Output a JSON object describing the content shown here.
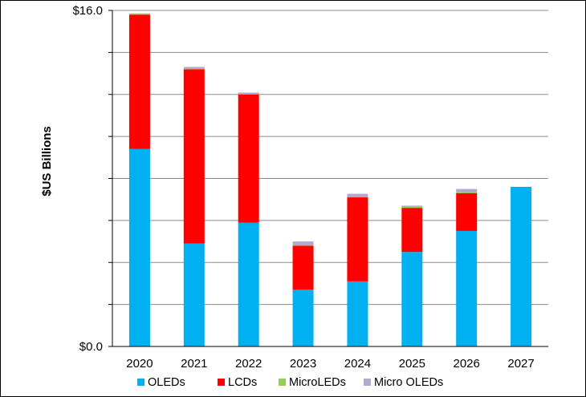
{
  "chart_data": {
    "type": "bar",
    "stacked": true,
    "title": "",
    "xlabel": "",
    "ylabel": "$US Billions",
    "ylim": [
      0,
      16
    ],
    "y_tick_labels": [
      "$0.0",
      "$16.0"
    ],
    "grid": true,
    "legend_position": "bottom",
    "categories": [
      "2020",
      "2021",
      "2022",
      "2023",
      "2024",
      "2025",
      "2026",
      "2027"
    ],
    "series": [
      {
        "name": "OLEDs",
        "color": "#00b0f0",
        "values": [
          9.4,
          4.9,
          5.9,
          2.7,
          3.1,
          4.5,
          5.5,
          7.6
        ]
      },
      {
        "name": "LCDs",
        "color": "#ff0000",
        "values": [
          6.4,
          8.3,
          6.1,
          2.1,
          4.0,
          2.1,
          1.8,
          0.0
        ]
      },
      {
        "name": "MicroLEDs",
        "color": "#92d050",
        "values": [
          0.01,
          0.03,
          0.03,
          0.05,
          0.05,
          0.05,
          0.05,
          0.0
        ]
      },
      {
        "name": "Micro OLEDs",
        "color": "#b4a7d6",
        "values": [
          0.0,
          0.08,
          0.06,
          0.15,
          0.12,
          0.05,
          0.15,
          0.0
        ]
      }
    ]
  }
}
